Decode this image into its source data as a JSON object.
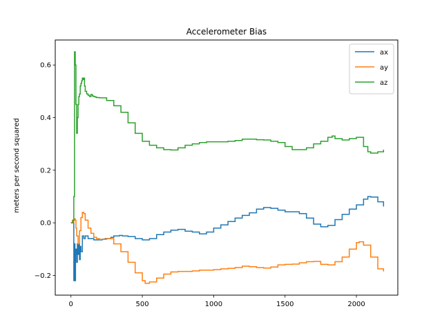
{
  "chart_data": {
    "type": "line",
    "title": "Accelerometer Bias",
    "xlabel": "",
    "ylabel": "meters per second squared",
    "xlim": [
      -110,
      2290
    ],
    "ylim": [
      -0.275,
      0.695
    ],
    "xticks": [
      0,
      500,
      1000,
      1500,
      2000
    ],
    "xtick_labels": [
      "0",
      "500",
      "1000",
      "1500",
      "2000"
    ],
    "yticks": [
      -0.2,
      0.0,
      0.2,
      0.4,
      0.6
    ],
    "ytick_labels": [
      "−0.2",
      "0.0",
      "0.2",
      "0.4",
      "0.6"
    ],
    "grid": false,
    "legend": "top-right",
    "series": [
      {
        "name": "ax",
        "color": "#1f77b4",
        "x": [
          0,
          15,
          20,
          25,
          28,
          32,
          35,
          40,
          45,
          50,
          55,
          60,
          65,
          70,
          80,
          90,
          100,
          120,
          140,
          160,
          180,
          200,
          220,
          240,
          260,
          280,
          300,
          340,
          360,
          380,
          400,
          450,
          500,
          550,
          600,
          650,
          700,
          750,
          800,
          850,
          900,
          950,
          1000,
          1050,
          1100,
          1150,
          1200,
          1250,
          1300,
          1350,
          1400,
          1450,
          1500,
          1550,
          1600,
          1650,
          1700,
          1750,
          1800,
          1850,
          1900,
          1950,
          2000,
          2050,
          2080,
          2100,
          2150,
          2190
        ],
        "y": [
          0.0,
          0.0,
          -0.22,
          -0.08,
          -0.22,
          -0.12,
          -0.1,
          -0.15,
          -0.08,
          -0.12,
          -0.08,
          -0.14,
          -0.09,
          -0.11,
          -0.05,
          -0.06,
          -0.05,
          -0.06,
          -0.06,
          -0.065,
          -0.065,
          -0.065,
          -0.062,
          -0.06,
          -0.06,
          -0.055,
          -0.05,
          -0.048,
          -0.05,
          -0.05,
          -0.052,
          -0.06,
          -0.065,
          -0.06,
          -0.045,
          -0.035,
          -0.028,
          -0.025,
          -0.032,
          -0.035,
          -0.042,
          -0.035,
          -0.02,
          -0.008,
          0.005,
          0.018,
          0.028,
          0.038,
          0.052,
          0.058,
          0.055,
          0.048,
          0.042,
          0.042,
          0.035,
          0.018,
          -0.005,
          -0.015,
          -0.01,
          0.012,
          0.032,
          0.052,
          0.068,
          0.09,
          0.1,
          0.098,
          0.08,
          0.062
        ]
      },
      {
        "name": "ay",
        "color": "#ff7f0e",
        "x": [
          0,
          10,
          15,
          20,
          25,
          30,
          35,
          40,
          50,
          60,
          70,
          80,
          90,
          100,
          120,
          140,
          160,
          180,
          200,
          250,
          300,
          350,
          400,
          450,
          500,
          520,
          550,
          600,
          650,
          700,
          750,
          800,
          850,
          900,
          950,
          1000,
          1050,
          1100,
          1150,
          1200,
          1250,
          1300,
          1350,
          1400,
          1450,
          1500,
          1550,
          1600,
          1650,
          1700,
          1750,
          1800,
          1850,
          1900,
          1950,
          2000,
          2020,
          2050,
          2100,
          2150,
          2190
        ],
        "y": [
          0.0,
          0.01,
          0.0,
          0.01,
          0.015,
          0.01,
          -0.02,
          -0.05,
          -0.08,
          -0.03,
          0.02,
          0.04,
          0.035,
          0.01,
          -0.02,
          -0.04,
          -0.055,
          -0.06,
          -0.063,
          -0.06,
          -0.08,
          -0.11,
          -0.15,
          -0.19,
          -0.22,
          -0.23,
          -0.225,
          -0.21,
          -0.195,
          -0.187,
          -0.185,
          -0.185,
          -0.183,
          -0.18,
          -0.18,
          -0.178,
          -0.175,
          -0.173,
          -0.17,
          -0.165,
          -0.167,
          -0.17,
          -0.172,
          -0.168,
          -0.16,
          -0.158,
          -0.157,
          -0.152,
          -0.148,
          -0.147,
          -0.158,
          -0.16,
          -0.148,
          -0.13,
          -0.1,
          -0.075,
          -0.072,
          -0.085,
          -0.13,
          -0.175,
          -0.185
        ]
      },
      {
        "name": "az",
        "color": "#2ca02c",
        "x": [
          0,
          10,
          15,
          20,
          25,
          30,
          35,
          40,
          45,
          50,
          55,
          60,
          65,
          70,
          75,
          80,
          85,
          90,
          95,
          100,
          110,
          120,
          130,
          140,
          150,
          160,
          170,
          180,
          200,
          250,
          300,
          350,
          400,
          450,
          500,
          550,
          600,
          650,
          700,
          750,
          800,
          850,
          900,
          950,
          1000,
          1050,
          1100,
          1150,
          1200,
          1250,
          1300,
          1350,
          1400,
          1450,
          1500,
          1550,
          1600,
          1650,
          1700,
          1750,
          1800,
          1830,
          1850,
          1900,
          1950,
          2000,
          2050,
          2080,
          2100,
          2150,
          2190
        ],
        "y": [
          0.0,
          0.0,
          0.01,
          0.1,
          0.65,
          0.6,
          0.45,
          0.34,
          0.4,
          0.45,
          0.48,
          0.49,
          0.52,
          0.53,
          0.54,
          0.55,
          0.545,
          0.55,
          0.52,
          0.5,
          0.49,
          0.485,
          0.48,
          0.488,
          0.482,
          0.48,
          0.478,
          0.476,
          0.475,
          0.465,
          0.445,
          0.42,
          0.38,
          0.34,
          0.31,
          0.295,
          0.285,
          0.278,
          0.277,
          0.285,
          0.295,
          0.3,
          0.305,
          0.308,
          0.308,
          0.308,
          0.31,
          0.313,
          0.318,
          0.318,
          0.316,
          0.315,
          0.31,
          0.305,
          0.29,
          0.278,
          0.278,
          0.285,
          0.3,
          0.31,
          0.325,
          0.33,
          0.32,
          0.315,
          0.32,
          0.325,
          0.29,
          0.27,
          0.265,
          0.27,
          0.278
        ]
      }
    ]
  }
}
